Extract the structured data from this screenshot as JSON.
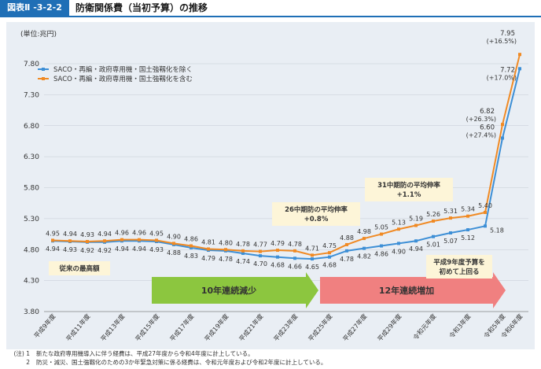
{
  "figure": {
    "number": "図表Ⅱ -3-2-2",
    "title": "防衛関係費（当初予算）の推移"
  },
  "chart_data": {
    "type": "line",
    "unit_label": "(単位:兆円)",
    "categories": [
      "平成9年度",
      "平成10年度",
      "平成11年度",
      "平成12年度",
      "平成13年度",
      "平成14年度",
      "平成15年度",
      "平成16年度",
      "平成17年度",
      "平成18年度",
      "平成19年度",
      "平成20年度",
      "平成21年度",
      "平成22年度",
      "平成23年度",
      "平成24年度",
      "平成25年度",
      "平成26年度",
      "平成27年度",
      "平成28年度",
      "平成29年度",
      "平成30年度",
      "令和元年度",
      "令和2年度",
      "令和3年度",
      "令和4年度",
      "令和5年度",
      "令和6年度"
    ],
    "x_tick_labels": [
      "平成9年度",
      "平成11年度",
      "平成13年度",
      "平成15年度",
      "平成17年度",
      "平成19年度",
      "平成21年度",
      "平成23年度",
      "平成25年度",
      "平成27年度",
      "平成29年度",
      "令和元年度",
      "令和3年度",
      "令和5年度",
      "令和6年度"
    ],
    "yticks": [
      "7.80",
      "7.30",
      "6.80",
      "6.30",
      "5.80",
      "5.30",
      "4.80",
      "4.30",
      "3.80"
    ],
    "ylim": [
      3.8,
      7.95
    ],
    "series": [
      {
        "name": "SACO・再編・政府専用機・国土強靱化を除く",
        "color": "#3d8fd6",
        "values": [
          4.94,
          4.93,
          4.92,
          4.92,
          4.94,
          4.94,
          4.93,
          4.88,
          4.83,
          4.79,
          4.78,
          4.74,
          4.7,
          4.68,
          4.66,
          4.65,
          4.68,
          4.78,
          4.82,
          4.86,
          4.9,
          4.94,
          5.01,
          5.07,
          5.12,
          5.18,
          6.6,
          7.72
        ],
        "labels": [
          "4.94",
          "4.93",
          "4.92",
          "4.92",
          "4.94",
          "4.94",
          "4.93",
          "4.88",
          "4.83",
          "4.79",
          "4.78",
          "4.74",
          "4.70",
          "4.68",
          "4.66",
          "4.65",
          "4.68",
          "4.78",
          "4.82",
          "4.86",
          "4.90",
          "4.94",
          "5.01",
          "5.07",
          "5.12",
          "5.18",
          "6.60",
          "7.72"
        ]
      },
      {
        "name": "SACO・再編・政府専用機・国土強靱化を含む",
        "color": "#f08a24",
        "values": [
          4.95,
          4.94,
          4.93,
          4.94,
          4.96,
          4.96,
          4.95,
          4.9,
          4.86,
          4.81,
          4.8,
          4.78,
          4.77,
          4.79,
          4.78,
          4.71,
          4.75,
          4.88,
          4.98,
          5.05,
          5.13,
          5.19,
          5.26,
          5.31,
          5.34,
          5.4,
          6.82,
          7.95
        ],
        "labels": [
          "4.95",
          "4.94",
          "4.93",
          "4.94",
          "4.96",
          "4.96",
          "4.95",
          "4.90",
          "4.86",
          "4.81",
          "4.80",
          "4.78",
          "4.77",
          "4.79",
          "4.78",
          "4.71",
          "4.75",
          "4.88",
          "4.98",
          "5.05",
          "5.13",
          "5.19",
          "5.26",
          "5.31",
          "5.34",
          "5.40",
          "6.82",
          "7.95"
        ]
      }
    ],
    "growth_labels": {
      "orange_r5": "(+26.3%)",
      "blue_r5": "(+27.4%)",
      "orange_r6": "(+16.5%)",
      "blue_r6": "(+17.0%)"
    },
    "callouts": {
      "peak_prior": "従来の最高額",
      "avg26_line1": "26中期防の平均伸率",
      "avg26_line2": "+0.8%",
      "avg31_line1": "31中期防の平均伸率",
      "avg31_line2": "+1.1%",
      "h9_line1": "平成9年度予算を",
      "h9_line2": "初めて上回る"
    },
    "arrows": {
      "decrease": "10年連続減少",
      "increase": "12年連続増加"
    },
    "colors": {
      "panel": "#e9eef4",
      "grid": "#c5cbd3",
      "decrease": "#8cc63f",
      "increase": "#f08080",
      "callout_bg": "#fdf5d8"
    }
  },
  "notes": [
    {
      "label": "(注) 1",
      "text": "新たな政府専用機導入に伴う経費は、平成27年度から令和4年度に計上している。"
    },
    {
      "label": "2",
      "text": "防災・減災、国土強靱化のための3か年緊急対策に係る経費は、令和元年度および令和2年度に計上している。"
    }
  ]
}
